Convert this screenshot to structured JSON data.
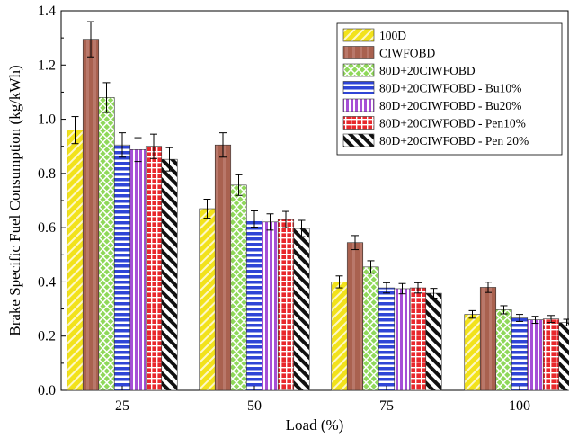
{
  "chart_data": {
    "type": "bar",
    "xlabel": "Load (%)",
    "ylabel": "Brake Specific Fuel Consumption (kg/kWh)",
    "categories": [
      "25",
      "50",
      "75",
      "100"
    ],
    "ylim": [
      0.0,
      1.4
    ],
    "yticks": [
      "0.0",
      "0.2",
      "0.4",
      "0.6",
      "0.8",
      "1.0",
      "1.2",
      "1.4"
    ],
    "grid": false,
    "legend_position": "top-right",
    "series": [
      {
        "name": "100D",
        "values": [
          0.96,
          0.67,
          0.4,
          0.28
        ],
        "errors": [
          0.05,
          0.035,
          0.022,
          0.014
        ],
        "color": "#f2e21b",
        "pattern": "diag-up"
      },
      {
        "name": "CIWFOBD",
        "values": [
          1.295,
          0.905,
          0.545,
          0.38
        ],
        "errors": [
          0.065,
          0.045,
          0.026,
          0.019
        ],
        "color": "#a9614f",
        "pattern": "vstripe"
      },
      {
        "name": "80D+20CIWFOBD",
        "values": [
          1.08,
          0.757,
          0.455,
          0.297
        ],
        "errors": [
          0.055,
          0.038,
          0.023,
          0.015
        ],
        "color": "#8fd85a",
        "pattern": "crosshatch"
      },
      {
        "name": "80D+20CIWFOBD - Bu10%",
        "values": [
          0.905,
          0.632,
          0.378,
          0.267
        ],
        "errors": [
          0.045,
          0.03,
          0.019,
          0.013
        ],
        "color": "#2f45d6",
        "pattern": "hstripe"
      },
      {
        "name": "80D+20CIWFOBD - Bu20%",
        "values": [
          0.888,
          0.621,
          0.375,
          0.26
        ],
        "errors": [
          0.044,
          0.03,
          0.019,
          0.013
        ],
        "color": "#a64fd6",
        "pattern": "vstripe-white"
      },
      {
        "name": "80D+20CIWFOBD - Pen10%",
        "values": [
          0.9,
          0.63,
          0.378,
          0.263
        ],
        "errors": [
          0.045,
          0.03,
          0.019,
          0.013
        ],
        "color": "#e8282c",
        "pattern": "grid"
      },
      {
        "name": "80D+20CIWFOBD - Pen 20%",
        "values": [
          0.852,
          0.597,
          0.358,
          0.25
        ],
        "errors": [
          0.043,
          0.03,
          0.018,
          0.012
        ],
        "color": "#111111",
        "pattern": "diag-down"
      }
    ]
  }
}
